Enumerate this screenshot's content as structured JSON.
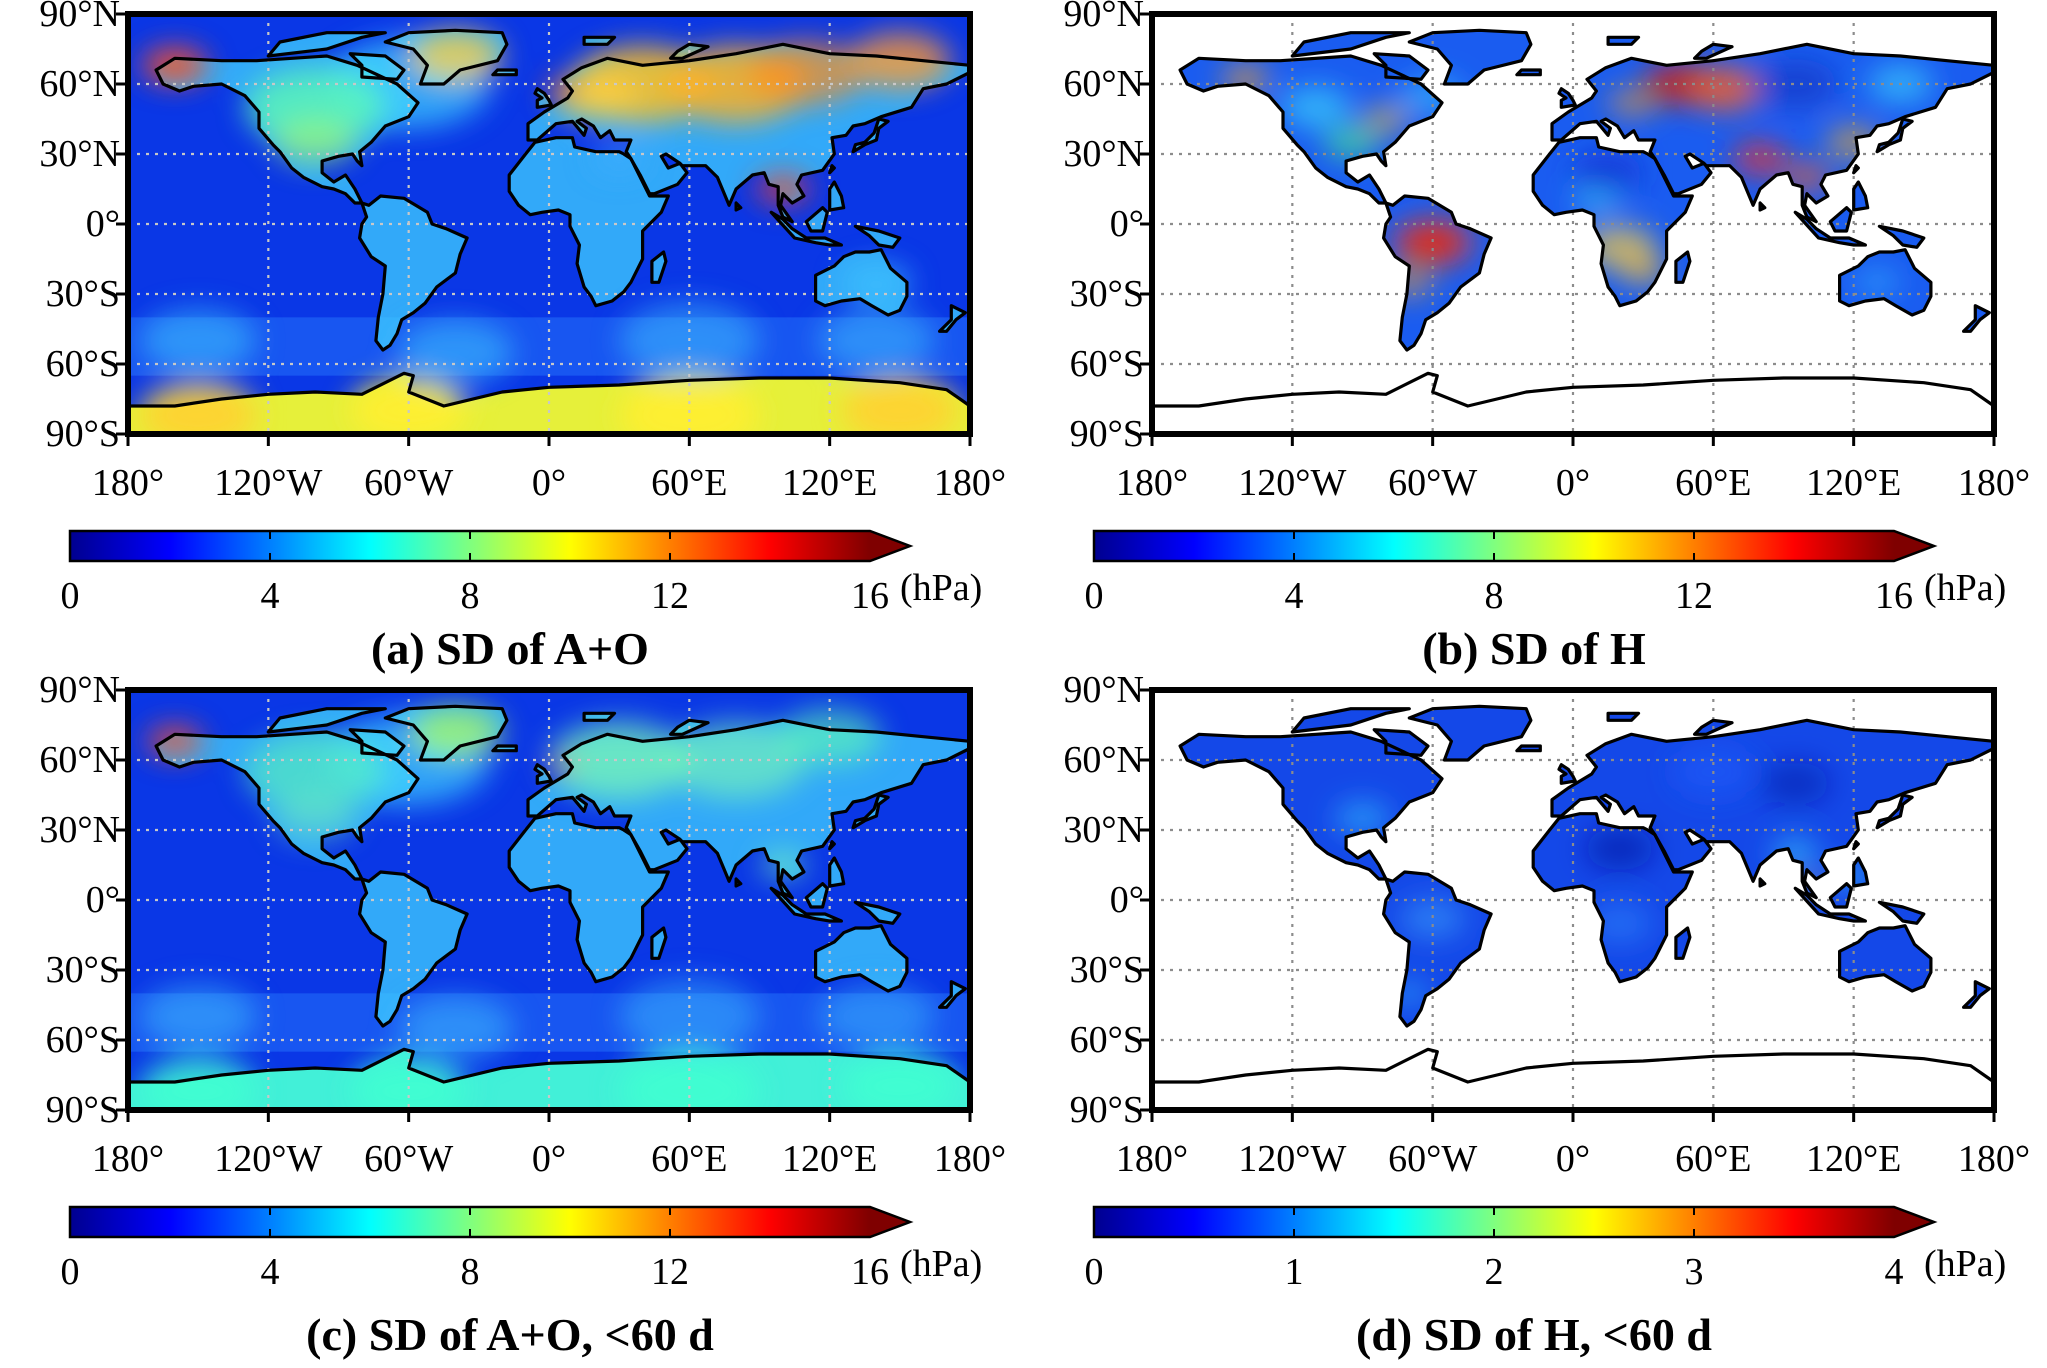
{
  "lat_ticks": [
    "90°N",
    "60°N",
    "30°N",
    "0°",
    "30°S",
    "60°S",
    "90°S"
  ],
  "lon_ticks": [
    "180°",
    "120°W",
    "60°W",
    "0°",
    "60°E",
    "120°E",
    "180°"
  ],
  "unit": "(hPa)",
  "colormap": [
    "#00008f",
    "#0000ff",
    "#007fff",
    "#00ffff",
    "#7fff7f",
    "#ffff00",
    "#ff7f00",
    "#ff0000",
    "#7f0000"
  ],
  "panels": [
    {
      "id": "a",
      "title": "(a) SD of A+O",
      "map_type": "global",
      "colorbar": {
        "min": 0,
        "max": 16,
        "ticks": [
          "0",
          "4",
          "8",
          "12",
          "16"
        ],
        "extend": "max"
      }
    },
    {
      "id": "b",
      "title": "(b) SD of H",
      "map_type": "land",
      "colorbar": {
        "min": 0,
        "max": 16,
        "ticks": [
          "0",
          "4",
          "8",
          "12",
          "16"
        ],
        "extend": "max"
      }
    },
    {
      "id": "c",
      "title": "(c) SD of A+O, <60 d",
      "map_type": "global",
      "colorbar": {
        "min": 0,
        "max": 16,
        "ticks": [
          "0",
          "4",
          "8",
          "12",
          "16"
        ],
        "extend": "max"
      }
    },
    {
      "id": "d",
      "title": "(d) SD of H, <60 d",
      "map_type": "land",
      "colorbar": {
        "min": 0,
        "max": 4,
        "ticks": [
          "0",
          "1",
          "2",
          "3",
          "4"
        ],
        "extend": "max"
      }
    }
  ]
}
